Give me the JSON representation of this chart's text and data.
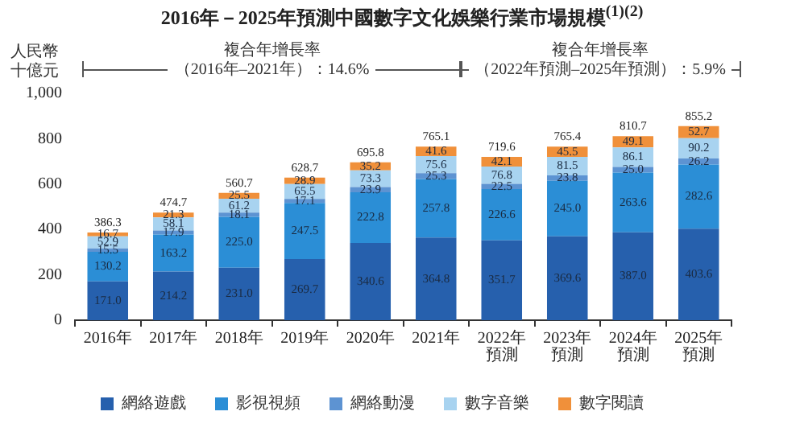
{
  "chart_data": {
    "type": "bar",
    "title": "2016年－2025年預測中國數字文化娛樂行業市場規模$^{(1)(2)}$",
    "ylabel": "人民幣十億元",
    "annotations": [
      "複合年增長率",
      "（2016年–2021年）：14.6%",
      "複合年增長率",
      "（2022年預測–2025年預測）：5.9%"
    ],
    "categories": [
      "2016年",
      "2017年",
      "2018年",
      "2019年",
      "2020年",
      "2021年",
      "2022年預測",
      "2023年預測",
      "2024年預測",
      "2025年預測"
    ],
    "stacked": true,
    "series": [
      {
        "name": "網絡遊戲",
        "color": "#2660ad",
        "values": [
          171.0,
          214.2,
          231.0,
          269.7,
          340.6,
          364.8,
          351.7,
          369.6,
          387.0,
          403.6
        ],
        "value_labels": [
          "171.0",
          "214.2",
          "231.0",
          "269.7",
          "340.6",
          "364.8",
          "351.7",
          "369.6",
          "387.0",
          "403.6"
        ]
      },
      {
        "name": "影視視頻",
        "color": "#2b8ed6",
        "values": [
          130.2,
          163.2,
          225.0,
          247.5,
          222.8,
          257.8,
          226.6,
          245.0,
          263.6,
          282.6
        ],
        "value_labels": [
          "130.2",
          "163.2",
          "225.0",
          "247.5",
          "222.8",
          "257.8",
          "226.6",
          "245.0",
          "263.6",
          "282.6"
        ]
      },
      {
        "name": "網絡動漫",
        "color": "#5d93d2",
        "values": [
          15.5,
          17.9,
          18.1,
          17.1,
          23.9,
          25.3,
          22.5,
          23.8,
          25.0,
          26.2
        ],
        "value_labels": [
          "15.5",
          "17.9",
          "18.1",
          "17.1",
          "23.9",
          "25.3",
          "22.5",
          "23.8",
          "25.0",
          "26.2"
        ]
      },
      {
        "name": "數字音樂",
        "color": "#a8d3f0",
        "values": [
          52.9,
          58.1,
          61.2,
          65.5,
          73.3,
          75.6,
          76.8,
          81.5,
          86.1,
          90.2
        ],
        "value_labels": [
          "52.9",
          "58.1",
          "61.2",
          "65.5",
          "73.3",
          "75.6",
          "76.8",
          "81.5",
          "86.1",
          "90.2"
        ]
      },
      {
        "name": "數字閱讀",
        "color": "#f0903a",
        "values": [
          16.7,
          21.3,
          25.5,
          28.9,
          35.2,
          41.6,
          42.1,
          45.5,
          49.1,
          52.7
        ],
        "value_labels": [
          "16.7",
          "21.3",
          "25.5",
          "28.9",
          "35.2",
          "41.6",
          "42.1",
          "45.5",
          "49.1",
          "52.7"
        ]
      }
    ],
    "totals": [
      "386.3",
      "474.7",
      "560.7",
      "628.7",
      "695.8",
      "765.1",
      "719.6",
      "765.4",
      "810.7",
      "855.2"
    ],
    "ylim": [
      0,
      1000
    ],
    "yticks": [
      0,
      200,
      400,
      600,
      800,
      {
        "value": 1000,
        "label": "1,000"
      }
    ],
    "grid": false,
    "legend": "bottom"
  }
}
